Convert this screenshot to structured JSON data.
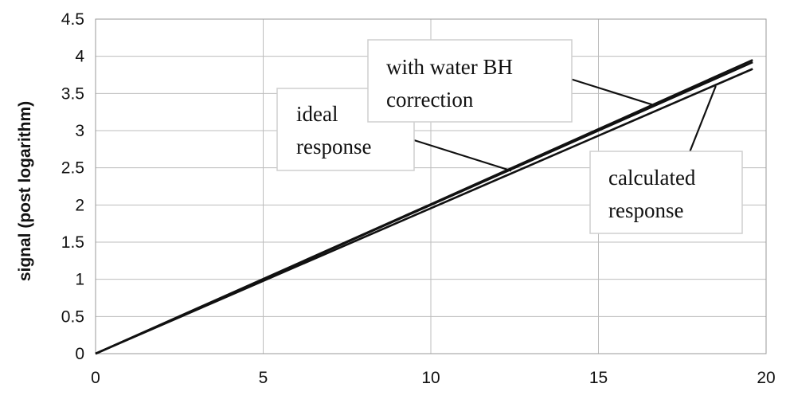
{
  "chart_data": {
    "type": "line",
    "xlabel": "",
    "ylabel": "signal (post logarithm)",
    "xlim": [
      0,
      20
    ],
    "ylim": [
      0,
      4.5
    ],
    "xticks": [
      "0",
      "5",
      "10",
      "15",
      "20"
    ],
    "yticks": [
      "0",
      "0.5",
      "1",
      "1.5",
      "2",
      "2.5",
      "3",
      "3.5",
      "4",
      "4.5"
    ],
    "grid": true,
    "series": [
      {
        "name": "ideal response",
        "x": [
          0,
          19.6
        ],
        "y": [
          0,
          3.92
        ],
        "color": "#111111"
      },
      {
        "name": "with water BH correction",
        "x": [
          0,
          10,
          19.6
        ],
        "y": [
          0,
          2.01,
          3.95
        ],
        "color": "#111111"
      },
      {
        "name": "calculated response",
        "x": [
          0,
          9,
          19.6
        ],
        "y": [
          0,
          1.76,
          3.83
        ],
        "color": "#111111"
      }
    ],
    "annotations": [
      {
        "id": "ideal",
        "lines": [
          "ideal",
          "response"
        ],
        "points_to": [
          12.4,
          2.46
        ]
      },
      {
        "id": "water",
        "lines": [
          "with water BH",
          "correction"
        ],
        "points_to": [
          16.6,
          3.35
        ]
      },
      {
        "id": "calc",
        "lines": [
          "calculated",
          "response"
        ],
        "points_to": [
          18.5,
          3.6
        ]
      }
    ]
  }
}
